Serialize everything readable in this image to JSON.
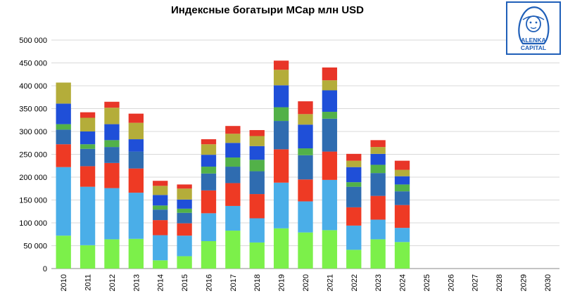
{
  "chart_data": {
    "type": "bar",
    "stacked": true,
    "title": "Индексные богатыри MCap млн USD",
    "xlabel": "",
    "ylabel": "",
    "ylim": [
      0,
      500000
    ],
    "yticks": [
      0,
      50000,
      100000,
      150000,
      200000,
      250000,
      300000,
      350000,
      400000,
      450000,
      500000
    ],
    "ytick_labels": [
      "0",
      "50 000",
      "100 000",
      "150 000",
      "200 000",
      "250 000",
      "300 000",
      "350 000",
      "400 000",
      "450 000",
      "500 000"
    ],
    "categories": [
      "2010",
      "2011",
      "2012",
      "2013",
      "2014",
      "2015",
      "2016",
      "2017",
      "2018",
      "2019",
      "2020",
      "2021",
      "2022",
      "2023",
      "2024",
      "2025",
      "2026",
      "2027",
      "2028",
      "2029",
      "2030"
    ],
    "grid": true,
    "legend": "none",
    "series": [
      {
        "color": "#7cf04a",
        "values": [
          72000,
          51000,
          64000,
          65000,
          18000,
          27000,
          60000,
          83000,
          57000,
          88000,
          79000,
          84000,
          41000,
          64000,
          58000,
          null,
          null,
          null,
          null,
          null,
          null
        ]
      },
      {
        "color": "#4aaee8",
        "values": [
          150000,
          128000,
          112000,
          101000,
          55000,
          45000,
          61000,
          54000,
          53000,
          100000,
          68000,
          110000,
          53000,
          43000,
          31000,
          null,
          null,
          null,
          null,
          null,
          null
        ]
      },
      {
        "color": "#ee3a24",
        "values": [
          50000,
          45000,
          55000,
          53000,
          33000,
          27000,
          50000,
          50000,
          53000,
          73000,
          48000,
          62000,
          40000,
          52000,
          50000,
          null,
          null,
          null,
          null,
          null,
          null
        ]
      },
      {
        "color": "#2f6cb0",
        "values": [
          32000,
          38000,
          35000,
          37000,
          23000,
          23000,
          37000,
          36000,
          50000,
          62000,
          53000,
          72000,
          45000,
          50000,
          30000,
          null,
          null,
          null,
          null,
          null,
          null
        ]
      },
      {
        "color": "#52b148",
        "values": [
          12000,
          10000,
          15000,
          0,
          9000,
          9000,
          15000,
          20000,
          25000,
          30000,
          15000,
          15000,
          10000,
          18000,
          15000,
          null,
          null,
          null,
          null,
          null,
          null
        ]
      },
      {
        "color": "#1f4fd8",
        "values": [
          45000,
          28000,
          35000,
          27000,
          23000,
          20000,
          26000,
          32000,
          30000,
          48000,
          52000,
          47000,
          33000,
          24000,
          18000,
          null,
          null,
          null,
          null,
          null,
          null
        ]
      },
      {
        "color": "#b4ad3a",
        "values": [
          46000,
          30000,
          36000,
          36000,
          20000,
          24000,
          23000,
          20000,
          22000,
          34000,
          23000,
          22000,
          14000,
          15000,
          14000,
          null,
          null,
          null,
          null,
          null,
          null
        ]
      },
      {
        "color": "#e83528",
        "values": [
          0,
          12000,
          13000,
          20000,
          11000,
          9000,
          11000,
          17000,
          13000,
          20000,
          28000,
          28000,
          15000,
          15000,
          20000,
          null,
          null,
          null,
          null,
          null,
          null
        ]
      }
    ]
  },
  "logo": {
    "line1": "ALENKA",
    "line2": "CAPITAL"
  }
}
